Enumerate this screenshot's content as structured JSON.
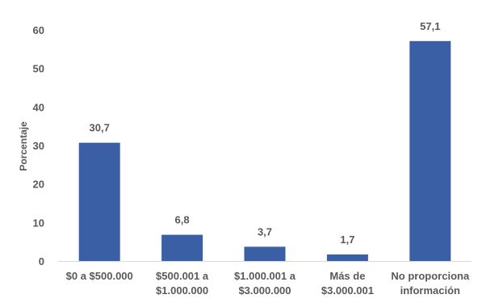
{
  "chart_data": {
    "type": "bar",
    "title": "",
    "xlabel": "",
    "ylabel": "Porcentaje",
    "ylim": [
      0,
      60
    ],
    "yticks": [
      "0",
      "10",
      "20",
      "30",
      "40",
      "50",
      "60"
    ],
    "grid": false,
    "legend": "none",
    "categories": [
      [
        "$0 a $500.000"
      ],
      [
        "$500.001 a",
        "$1.000.000"
      ],
      [
        "$1.000.001 a",
        "$3.000.000"
      ],
      [
        "Más de",
        "$3.000.001"
      ],
      [
        "No proporciona",
        "información"
      ]
    ],
    "values": [
      30.7,
      6.8,
      3.7,
      1.7,
      57.1
    ],
    "value_labels": [
      "30,7",
      "6,8",
      "3,7",
      "1,7",
      "57,1"
    ],
    "bar_color": "#3A5FA5",
    "axis_color": "#D9D9D9"
  }
}
